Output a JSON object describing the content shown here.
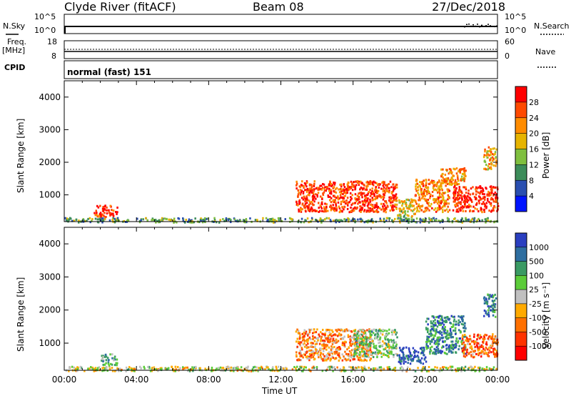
{
  "header": {
    "title": "Clyde River (fitACF)",
    "beam": "Beam 08",
    "date": "27/Dec/2018"
  },
  "top_panels": {
    "nsky_label": "N.Sky",
    "nsky_ticks": [
      "10^5",
      "10^0"
    ],
    "nsearch_label": "N.Search",
    "nsearch_ticks": [
      "10^5",
      "10^0"
    ],
    "freq_label": "Freq.",
    "freq_units": "[MHz]",
    "freq_ticks": [
      "18",
      "8"
    ],
    "nave_label": "Nave",
    "nave_ticks": [
      "60",
      "0"
    ],
    "cpid_label": "CPID",
    "cpid_value": "normal (fast) 151"
  },
  "colorbars": {
    "power": {
      "label": "Power [dB]",
      "ticks": [
        "28",
        "24",
        "20",
        "16",
        "12",
        "8",
        "4"
      ],
      "colors": [
        "#ff0000",
        "#ff4a00",
        "#ff8c00",
        "#e6b400",
        "#7fbf3f",
        "#3c8c5a",
        "#2a4fb0",
        "#0014ff"
      ]
    },
    "velocity": {
      "label": "Velocity [m s⁻¹]",
      "ticks": [
        "1000",
        "500",
        "100",
        "25",
        "-25",
        "-100",
        "-500",
        "-1000"
      ],
      "colors": [
        "#2a3fc0",
        "#2e6ea0",
        "#3a9a64",
        "#5ccc3a",
        "#c0c0c0",
        "#ffaa00",
        "#ff7000",
        "#ff3300",
        "#ff0000"
      ]
    }
  },
  "chart_data": [
    {
      "type": "heatmap",
      "title": "Power [dB]",
      "xlabel": "Time UT",
      "ylabel": "Slant Range [km]",
      "x_ticks": [
        "00:00",
        "04:00",
        "08:00",
        "12:00",
        "16:00",
        "20:00",
        "00:00"
      ],
      "xlim_hours": [
        0,
        24
      ],
      "ylim": [
        180,
        4500
      ],
      "y_ticks": [
        1000,
        2000,
        3000,
        4000
      ],
      "colorbar_ticks": [
        4,
        8,
        12,
        16,
        20,
        24,
        28
      ],
      "regions": [
        {
          "t0": 0.0,
          "t1": 24.0,
          "r0": 180,
          "r1": 320,
          "level": 0.35
        },
        {
          "t0": 1.6,
          "t1": 2.9,
          "r0": 350,
          "r1": 700,
          "level": 0.9
        },
        {
          "t0": 12.8,
          "t1": 18.4,
          "r0": 500,
          "r1": 1450,
          "level": 0.9
        },
        {
          "t0": 18.3,
          "t1": 19.4,
          "r0": 350,
          "r1": 900,
          "level": 0.55
        },
        {
          "t0": 19.4,
          "t1": 21.3,
          "r0": 500,
          "r1": 1500,
          "level": 0.75
        },
        {
          "t0": 20.8,
          "t1": 22.2,
          "r0": 1300,
          "r1": 1850,
          "level": 0.7
        },
        {
          "t0": 21.5,
          "t1": 24.0,
          "r0": 500,
          "r1": 1300,
          "level": 0.95
        },
        {
          "t0": 23.2,
          "t1": 23.9,
          "r0": 1800,
          "r1": 2500,
          "level": 0.65
        }
      ]
    },
    {
      "type": "heatmap",
      "title": "Velocity [m s⁻¹]",
      "xlabel": "Time UT",
      "ylabel": "Slant Range [km]",
      "x_ticks": [
        "00:00",
        "04:00",
        "08:00",
        "12:00",
        "16:00",
        "20:00",
        "00:00"
      ],
      "xlim_hours": [
        0,
        24
      ],
      "ylim": [
        180,
        4500
      ],
      "y_ticks": [
        1000,
        2000,
        3000,
        4000
      ],
      "colorbar_ticks": [
        -1000,
        -500,
        -100,
        -25,
        25,
        100,
        500,
        1000
      ],
      "regions": [
        {
          "t0": 0.0,
          "t1": 24.0,
          "r0": 180,
          "r1": 320,
          "level": 0.5
        },
        {
          "t0": 2.0,
          "t1": 2.9,
          "r0": 350,
          "r1": 700,
          "level": 0.7
        },
        {
          "t0": 12.8,
          "t1": 17.0,
          "r0": 500,
          "r1": 1450,
          "level": 0.3
        },
        {
          "t0": 16.0,
          "t1": 18.4,
          "r0": 600,
          "r1": 1450,
          "level": 0.6
        },
        {
          "t0": 18.4,
          "t1": 20.0,
          "r0": 400,
          "r1": 900,
          "level": 0.95
        },
        {
          "t0": 20.0,
          "t1": 22.2,
          "r0": 700,
          "r1": 1850,
          "level": 0.8
        },
        {
          "t0": 22.0,
          "t1": 24.0,
          "r0": 600,
          "r1": 1300,
          "level": 0.25
        },
        {
          "t0": 23.2,
          "t1": 23.9,
          "r0": 1800,
          "r1": 2500,
          "level": 0.85
        }
      ]
    }
  ]
}
